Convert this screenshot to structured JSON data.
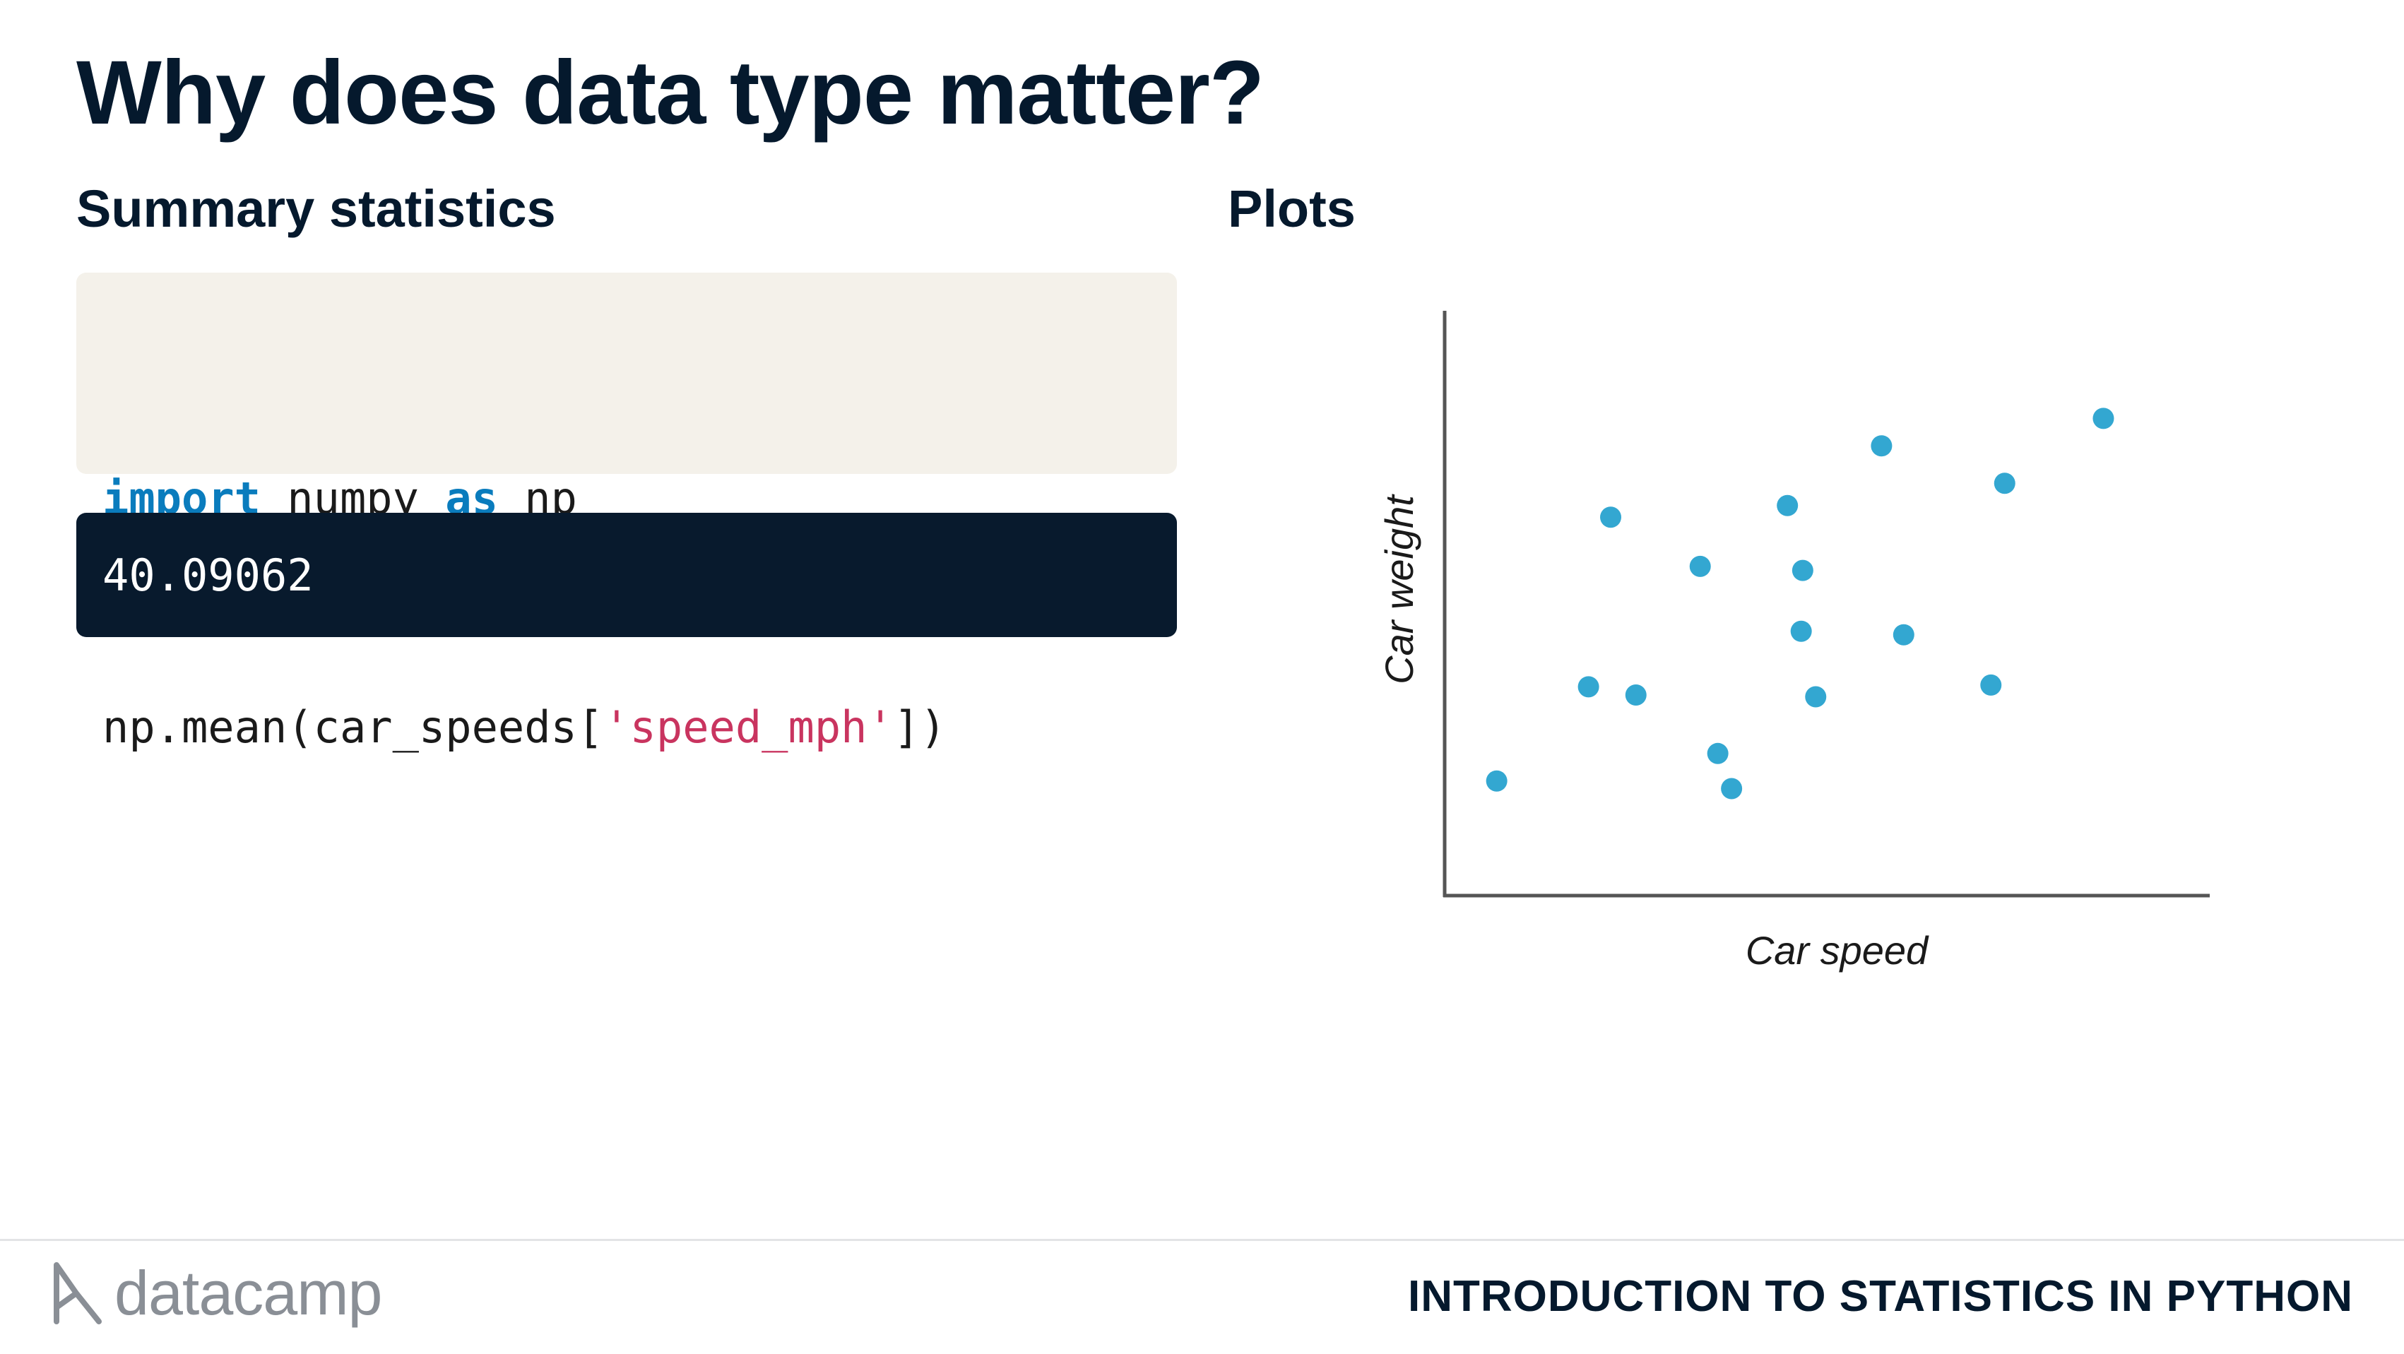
{
  "slide": {
    "title": "Why does data type matter?",
    "left_heading": "Summary statistics",
    "right_heading": "Plots"
  },
  "code": {
    "line1": {
      "kw1": "import",
      "t1": " numpy ",
      "kw2": "as",
      "t2": " np"
    },
    "line2": {
      "t1": "np.mean(car_speeds[",
      "str": "'speed_mph'",
      "t2": "])"
    }
  },
  "output": {
    "value": "40.09062"
  },
  "chart_data": {
    "type": "scatter",
    "xlabel": "Car speed",
    "ylabel": "Car weight",
    "xlim": [
      0,
      100
    ],
    "ylim": [
      0,
      100
    ],
    "grid": false,
    "point_color": "#33a7d1",
    "points": [
      {
        "x": 6.8,
        "y": 19.6
      },
      {
        "x": 18.8,
        "y": 35.7
      },
      {
        "x": 21.7,
        "y": 64.7
      },
      {
        "x": 25.0,
        "y": 34.3
      },
      {
        "x": 33.4,
        "y": 56.3
      },
      {
        "x": 35.7,
        "y": 24.3
      },
      {
        "x": 37.5,
        "y": 18.3
      },
      {
        "x": 44.8,
        "y": 66.7
      },
      {
        "x": 46.6,
        "y": 45.2
      },
      {
        "x": 46.8,
        "y": 55.6
      },
      {
        "x": 48.5,
        "y": 34.0
      },
      {
        "x": 57.1,
        "y": 76.9
      },
      {
        "x": 60.0,
        "y": 44.6
      },
      {
        "x": 71.4,
        "y": 36.0
      },
      {
        "x": 73.2,
        "y": 70.5
      },
      {
        "x": 86.1,
        "y": 81.6
      }
    ]
  },
  "footer": {
    "brand": "datacamp",
    "course_title": "INTRODUCTION TO STATISTICS IN PYTHON"
  },
  "colors": {
    "navy": "#05192d",
    "code_bg": "#f4f1ea",
    "output_bg": "#081a2d",
    "keyword": "#0a7cbd",
    "string": "#c9345f"
  }
}
